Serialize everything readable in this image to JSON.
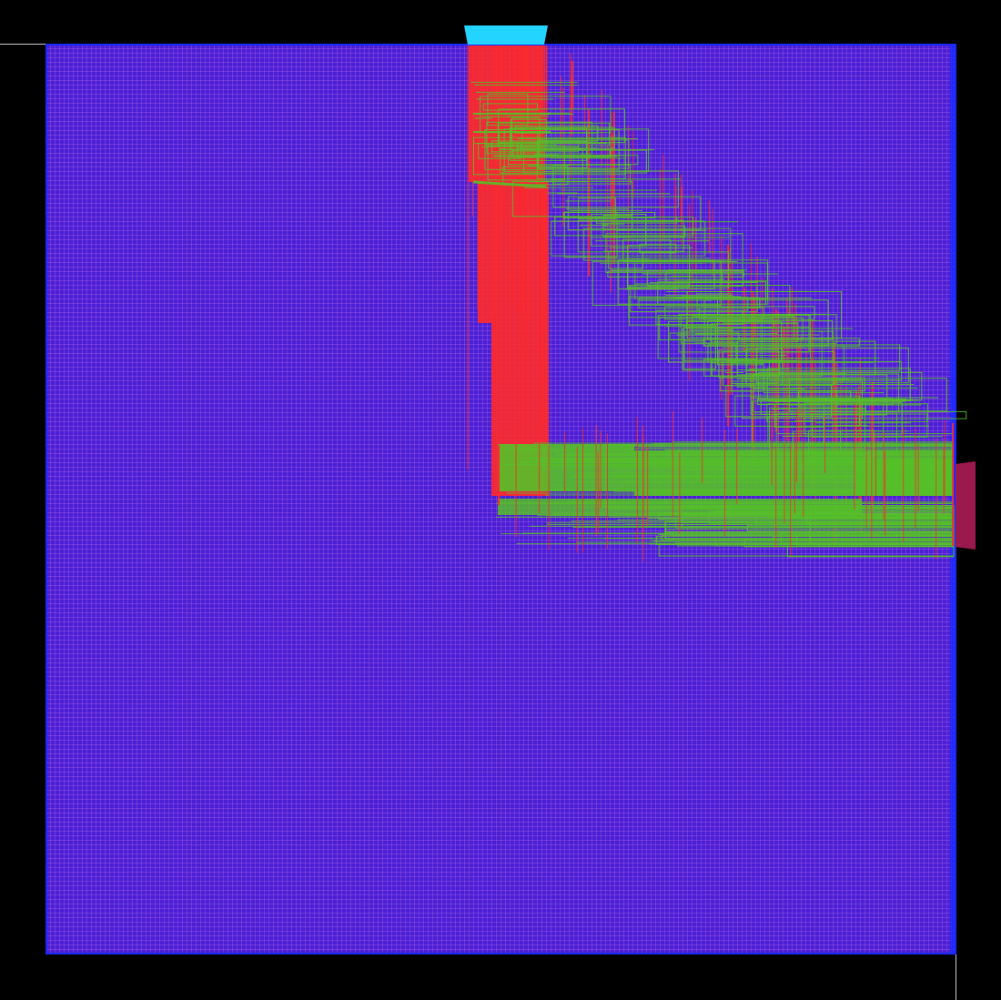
{
  "layout_view": {
    "colors": {
      "background": "#000000",
      "die_fill": "#4a1fd6",
      "grid_line": "#c070e0",
      "die_border": "#1a2aff",
      "route_vertical": "#ff2a2a",
      "route_horizontal": "#55c028",
      "pin_top": "#22d4ff",
      "pin_right": "#9a1a4e",
      "ruler": "#cccccc"
    },
    "layers": [
      {
        "name": "metal-vertical",
        "color": "#ff2a2a"
      },
      {
        "name": "metal-horizontal",
        "color": "#55c028"
      }
    ],
    "pins": [
      {
        "name": "top-io-pin",
        "side": "top",
        "color": "#22d4ff"
      },
      {
        "name": "right-io-pin",
        "side": "right",
        "color": "#9a1a4e"
      }
    ],
    "grid": {
      "shown": true
    }
  }
}
